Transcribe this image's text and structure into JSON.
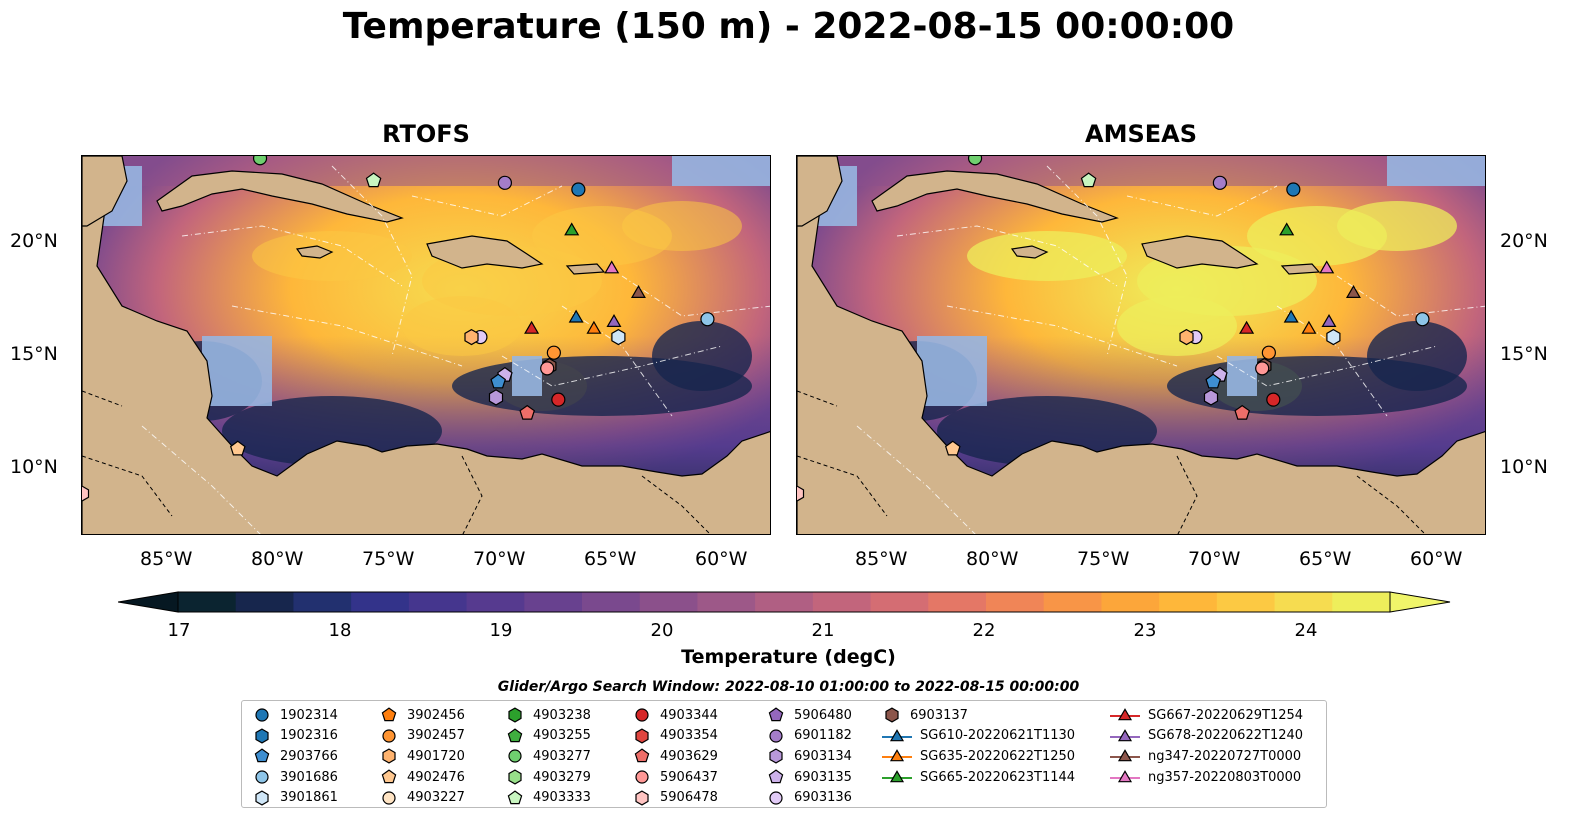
{
  "title": "Temperature (150 m) - 2022-08-15 00:00:00",
  "panels": [
    {
      "title": "RTOFS"
    },
    {
      "title": "AMSEAS"
    }
  ],
  "lat_labels": [
    "20°N",
    "15°N",
    "10°N"
  ],
  "lon_labels": [
    "85°W",
    "80°W",
    "75°W",
    "70°W",
    "65°W",
    "60°W"
  ],
  "colorbar": {
    "label": "Temperature (degC)",
    "ticks": [
      "17",
      "18",
      "19",
      "20",
      "21",
      "22",
      "23",
      "24"
    ],
    "colors": [
      "#0b2430",
      "#17264d",
      "#22306f",
      "#33338a",
      "#45368e",
      "#563a8f",
      "#68418f",
      "#7a498e",
      "#8b508b",
      "#9d5888",
      "#b05f83",
      "#c2657c",
      "#d46d73",
      "#e47766",
      "#f08557",
      "#f89547",
      "#fca63a",
      "#feb73a",
      "#fcc943",
      "#f6dc50",
      "#eeee5b"
    ],
    "under": "#061822",
    "over": "#f0f56a"
  },
  "legend": {
    "title": "Glider/Argo Search Window: 2022-08-10 01:00:00 to 2022-08-15 00:00:00",
    "columns": [
      [
        {
          "label": "1902314",
          "marker": "circle",
          "color": "#1f77b4"
        },
        {
          "label": "1902316",
          "marker": "hexagon",
          "color": "#1f77b4"
        },
        {
          "label": "2903766",
          "marker": "pentagon",
          "color": "#3e8ed0"
        },
        {
          "label": "3901686",
          "marker": "circle",
          "color": "#8ec5e8"
        },
        {
          "label": "3901861",
          "marker": "hexagon",
          "color": "#cfe6f7"
        }
      ],
      [
        {
          "label": "3902456",
          "marker": "pentagon",
          "color": "#ff7f0e"
        },
        {
          "label": "3902457",
          "marker": "circle",
          "color": "#ff9533"
        },
        {
          "label": "4901720",
          "marker": "hexagon",
          "color": "#ffb36e"
        },
        {
          "label": "4902476",
          "marker": "pentagon",
          "color": "#ffc890"
        },
        {
          "label": "4903227",
          "marker": "circle",
          "color": "#ffe4c4"
        }
      ],
      [
        {
          "label": "4903238",
          "marker": "hexagon",
          "color": "#2ca02c"
        },
        {
          "label": "4903255",
          "marker": "pentagon",
          "color": "#3fae3f"
        },
        {
          "label": "4903277",
          "marker": "circle",
          "color": "#6fcf6f"
        },
        {
          "label": "4903279",
          "marker": "hexagon",
          "color": "#98df8a"
        },
        {
          "label": "4903333",
          "marker": "pentagon",
          "color": "#c8f5c0"
        }
      ],
      [
        {
          "label": "4903344",
          "marker": "circle",
          "color": "#d62728"
        },
        {
          "label": "4903354",
          "marker": "hexagon",
          "color": "#e0453f"
        },
        {
          "label": "4903629",
          "marker": "pentagon",
          "color": "#ee6e69"
        },
        {
          "label": "5906437",
          "marker": "circle",
          "color": "#ff9896"
        },
        {
          "label": "5906478",
          "marker": "hexagon",
          "color": "#ffc4c2"
        }
      ],
      [
        {
          "label": "5906480",
          "marker": "pentagon",
          "color": "#9467bd"
        },
        {
          "label": "6901182",
          "marker": "circle",
          "color": "#a47dc9"
        },
        {
          "label": "6903134",
          "marker": "hexagon",
          "color": "#b898da"
        },
        {
          "label": "6903135",
          "marker": "pentagon",
          "color": "#cdb2ea"
        },
        {
          "label": "6903136",
          "marker": "circle",
          "color": "#e2cbf7"
        }
      ],
      [
        {
          "label": "6903137",
          "marker": "hexagon",
          "color": "#8c564b"
        },
        {
          "label": "SG610-20220621T1130",
          "marker": "triangle",
          "color": "#1f77b4",
          "line": true
        },
        {
          "label": "SG635-20220622T1250",
          "marker": "triangle",
          "color": "#ff7f0e",
          "line": true
        },
        {
          "label": "SG665-20220623T1144",
          "marker": "triangle",
          "color": "#2ca02c",
          "line": true
        }
      ],
      [
        {
          "label": "SG667-20220629T1254",
          "marker": "triangle",
          "color": "#d62728",
          "line": true
        },
        {
          "label": "SG678-20220622T1240",
          "marker": "triangle",
          "color": "#9467bd",
          "line": true
        },
        {
          "label": "ng347-20220727T0000",
          "marker": "triangle",
          "color": "#8c564b",
          "line": true
        },
        {
          "label": "ng357-20220803T0000",
          "marker": "triangle",
          "color": "#e377c2",
          "line": true
        }
      ]
    ]
  },
  "map": {
    "lon_range": [
      -89,
      -58
    ],
    "lat_range": [
      7,
      24
    ],
    "land_color": "#d2b48c",
    "water_color": "#97b6e1",
    "markers": [
      {
        "id": "1902314",
        "marker": "circle",
        "color": "#1f77b4",
        "lon": -66.7,
        "lat": 22.5
      },
      {
        "id": "6901182",
        "marker": "circle",
        "color": "#a47dc9",
        "lon": -70.0,
        "lat": 22.8
      },
      {
        "id": "4903277",
        "marker": "circle",
        "color": "#6fcf6f",
        "lon": -81.0,
        "lat": 23.9
      },
      {
        "id": "4903333",
        "marker": "pentagon",
        "color": "#c8f5c0",
        "lon": -75.9,
        "lat": 22.9
      },
      {
        "id": "SG665-20220623T1144",
        "marker": "triangle",
        "color": "#2ca02c",
        "lon": -67.0,
        "lat": 20.7
      },
      {
        "id": "ng357-20220803T0000",
        "marker": "triangle",
        "color": "#e377c2",
        "lon": -65.2,
        "lat": 19.0
      },
      {
        "id": "ng347-20220727T0000",
        "marker": "triangle",
        "color": "#8c564b",
        "lon": -64.0,
        "lat": 17.9
      },
      {
        "id": "SG610-20220621T1130",
        "marker": "triangle",
        "color": "#1f77b4",
        "lon": -66.8,
        "lat": 16.8
      },
      {
        "id": "SG635-20220622T1250",
        "marker": "triangle",
        "color": "#ff7f0e",
        "lon": -66.0,
        "lat": 16.3
      },
      {
        "id": "SG678-20220622T1240",
        "marker": "triangle",
        "color": "#9467bd",
        "lon": -65.1,
        "lat": 16.6
      },
      {
        "id": "3901861",
        "marker": "hexagon",
        "color": "#cfe6f7",
        "lon": -64.9,
        "lat": 15.9
      },
      {
        "id": "3901686",
        "marker": "circle",
        "color": "#8ec5e8",
        "lon": -60.9,
        "lat": 16.7
      },
      {
        "id": "SG667-20220629T1254",
        "marker": "triangle",
        "color": "#d62728",
        "lon": -68.8,
        "lat": 16.3
      },
      {
        "id": "6903136",
        "marker": "circle",
        "color": "#e2cbf7",
        "lon": -71.1,
        "lat": 15.9
      },
      {
        "id": "4901720",
        "marker": "hexagon",
        "color": "#ffb36e",
        "lon": -71.5,
        "lat": 15.9
      },
      {
        "id": "3902457",
        "marker": "circle",
        "color": "#ff9533",
        "lon": -67.8,
        "lat": 15.2
      },
      {
        "id": "6903137",
        "marker": "hexagon",
        "color": "#8c564b",
        "lon": -68.0,
        "lat": 14.6
      },
      {
        "id": "5906437",
        "marker": "circle",
        "color": "#ff9896",
        "lon": -68.1,
        "lat": 14.5
      },
      {
        "id": "6903135",
        "marker": "pentagon",
        "color": "#cdb2ea",
        "lon": -70.0,
        "lat": 14.2
      },
      {
        "id": "2903766",
        "marker": "pentagon",
        "color": "#3e8ed0",
        "lon": -70.3,
        "lat": 13.9
      },
      {
        "id": "6903134",
        "marker": "hexagon",
        "color": "#b898da",
        "lon": -70.4,
        "lat": 13.2
      },
      {
        "id": "4903629",
        "marker": "pentagon",
        "color": "#ee6e69",
        "lon": -69.0,
        "lat": 12.5
      },
      {
        "id": "4903344",
        "marker": "circle",
        "color": "#d62728",
        "lon": -67.6,
        "lat": 13.1
      },
      {
        "id": "4902476",
        "marker": "pentagon",
        "color": "#ffc890",
        "lon": -82.0,
        "lat": 10.9
      },
      {
        "id": "5906478",
        "marker": "hexagon",
        "color": "#ffc4c2",
        "lon": -89.0,
        "lat": 8.9
      }
    ]
  }
}
